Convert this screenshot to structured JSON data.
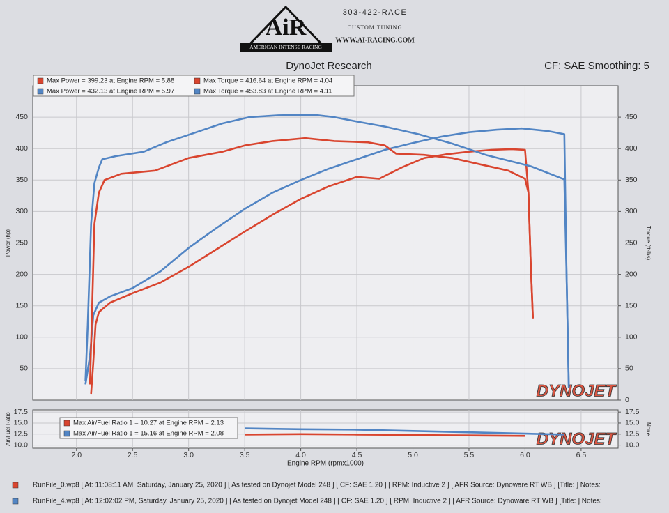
{
  "header": {
    "logo": "AiR",
    "logo_subtitle": "AMERICAN INTENSE RACING",
    "phone": "303-422-RACE",
    "tagline": "CUSTOM TUNING",
    "website": "WWW.AI-RACING.COM"
  },
  "chart_data": [
    {
      "type": "line",
      "title": "DynoJet Research",
      "subtitle": "CF: SAE Smoothing: 5",
      "y_label": "Power (hp)",
      "y2_label": "Torque (ft-lbs)",
      "watermark": "DYNOJET",
      "xlim": [
        1.61,
        6.83
      ],
      "ylim": [
        0,
        500
      ],
      "y2lim": [
        0,
        500
      ],
      "yticks": [
        50,
        100,
        150,
        200,
        250,
        300,
        350,
        400,
        450
      ],
      "y2ticks": [
        0,
        50,
        100,
        150,
        200,
        250,
        300,
        350,
        400,
        450
      ],
      "grid": true,
      "series": [
        {
          "name": "Max Power = 399.23 at Engine RPM = 5.88",
          "color": "#d9452f",
          "x": [
            2.13,
            2.15,
            2.17,
            2.2,
            2.3,
            2.5,
            2.75,
            3.0,
            3.25,
            3.5,
            3.75,
            4.0,
            4.25,
            4.5,
            4.7,
            4.9,
            5.1,
            5.3,
            5.5,
            5.7,
            5.88,
            6.0,
            6.03,
            6.05,
            6.07
          ],
          "values": [
            10,
            60,
            120,
            140,
            155,
            170,
            187,
            212,
            240,
            268,
            295,
            320,
            340,
            355,
            352,
            370,
            385,
            391,
            395,
            398,
            399.23,
            398,
            330,
            220,
            130
          ]
        },
        {
          "name": "Max Power = 432.13 at Engine RPM = 5.97",
          "color": "#5285c4",
          "x": [
            2.08,
            2.12,
            2.15,
            2.2,
            2.3,
            2.5,
            2.75,
            3.0,
            3.25,
            3.5,
            3.75,
            4.0,
            4.25,
            4.5,
            4.75,
            5.0,
            5.25,
            5.5,
            5.75,
            5.97,
            6.2,
            6.35,
            6.37,
            6.39
          ],
          "values": [
            25,
            70,
            135,
            155,
            165,
            178,
            205,
            242,
            274,
            304,
            330,
            350,
            368,
            383,
            398,
            409,
            419,
            426,
            430,
            432.13,
            428,
            423,
            200,
            20
          ]
        },
        {
          "name": "Max Torque = 416.64 at Engine RPM = 4.04",
          "color": "#d9452f",
          "axis": "y2",
          "x": [
            2.12,
            2.14,
            2.16,
            2.2,
            2.25,
            2.4,
            2.7,
            2.85,
            3.0,
            3.3,
            3.5,
            3.75,
            4.04,
            4.3,
            4.6,
            4.75,
            4.85,
            5.1,
            5.35,
            5.6,
            5.85,
            6.0,
            6.03,
            6.05,
            6.07
          ],
          "values": [
            25,
            150,
            280,
            330,
            350,
            360,
            365,
            375,
            385,
            395,
            405,
            412,
            416.64,
            412,
            410,
            405,
            392,
            390,
            385,
            375,
            365,
            352,
            330,
            220,
            130
          ]
        },
        {
          "name": "Max Torque = 453.83 at Engine RPM = 4.11",
          "color": "#5285c4",
          "axis": "y2",
          "x": [
            2.08,
            2.1,
            2.13,
            2.16,
            2.2,
            2.23,
            2.35,
            2.6,
            2.8,
            3.05,
            3.3,
            3.54,
            3.8,
            4.11,
            4.3,
            4.5,
            4.75,
            5.05,
            5.35,
            5.65,
            6.05,
            6.35,
            6.37,
            6.39
          ],
          "values": [
            30,
            120,
            280,
            345,
            370,
            383,
            388,
            395,
            410,
            425,
            440,
            450,
            453,
            453.83,
            450,
            443,
            435,
            423,
            408,
            390,
            372,
            351,
            200,
            20
          ]
        }
      ]
    },
    {
      "type": "line",
      "y_label": "Air/Fuel Ratio",
      "y2_label": "None",
      "x_label": "Engine RPM (rpmx1000)",
      "watermark": "DYNOJET",
      "xlim": [
        1.61,
        6.83
      ],
      "ylim": [
        9.3,
        18.0
      ],
      "y2lim": [
        9.3,
        18.0
      ],
      "xticks": [
        {
          "value": 2,
          "label": "2.0"
        },
        2.5,
        {
          "value": 3,
          "label": "3.0"
        },
        3.5,
        {
          "value": 4,
          "label": "4.0"
        },
        4.5,
        {
          "value": 5,
          "label": "5.0"
        },
        5.5,
        {
          "value": 6,
          "label": "6.0"
        },
        6.5
      ],
      "yticks": [
        {
          "value": 10,
          "label": "10.0"
        },
        12.5,
        {
          "value": 15,
          "label": "15.0"
        },
        17.5
      ],
      "y2ticks": [
        {
          "value": 10,
          "label": "10.0"
        },
        12.5,
        {
          "value": 15,
          "label": "15.0"
        },
        17.5
      ],
      "grid": true,
      "series": [
        {
          "name": "Max Air/Fuel Ratio 1 = 10.27 at Engine RPM = 2.13",
          "color": "#d9452f",
          "x": [
            3.5,
            4.0,
            4.5,
            5.0,
            5.5,
            6.0
          ],
          "values": [
            12.4,
            12.5,
            12.4,
            12.3,
            12.2,
            12.1
          ]
        },
        {
          "name": "Max Air/Fuel Ratio 1 = 15.16 at Engine RPM = 2.08",
          "color": "#5285c4",
          "x": [
            3.5,
            4.0,
            4.5,
            5.0,
            5.5,
            6.0,
            6.35
          ],
          "values": [
            13.8,
            13.6,
            13.5,
            13.2,
            12.9,
            12.6,
            12.4
          ]
        }
      ]
    }
  ],
  "footer": {
    "runs": [
      {
        "color": "#d9452f",
        "text": "RunFile_0.wp8 [ At: 11:08:11 AM, Saturday, January 25, 2020 ] [ As tested on Dynojet Model 248 ] [ CF: SAE 1.20 ] [ RPM: Inductive 2 ] [ AFR Source: Dynoware RT WB ] [Title: ]  Notes:"
      },
      {
        "color": "#5285c4",
        "text": "RunFile_4.wp8 [ At: 12:02:02 PM, Saturday, January 25, 2020 ] [ As tested on Dynojet Model 248 ] [ CF: SAE 1.20 ] [ RPM: Inductive 2 ] [ AFR Source: Dynoware RT WB ] [Title: ]  Notes:"
      }
    ]
  }
}
